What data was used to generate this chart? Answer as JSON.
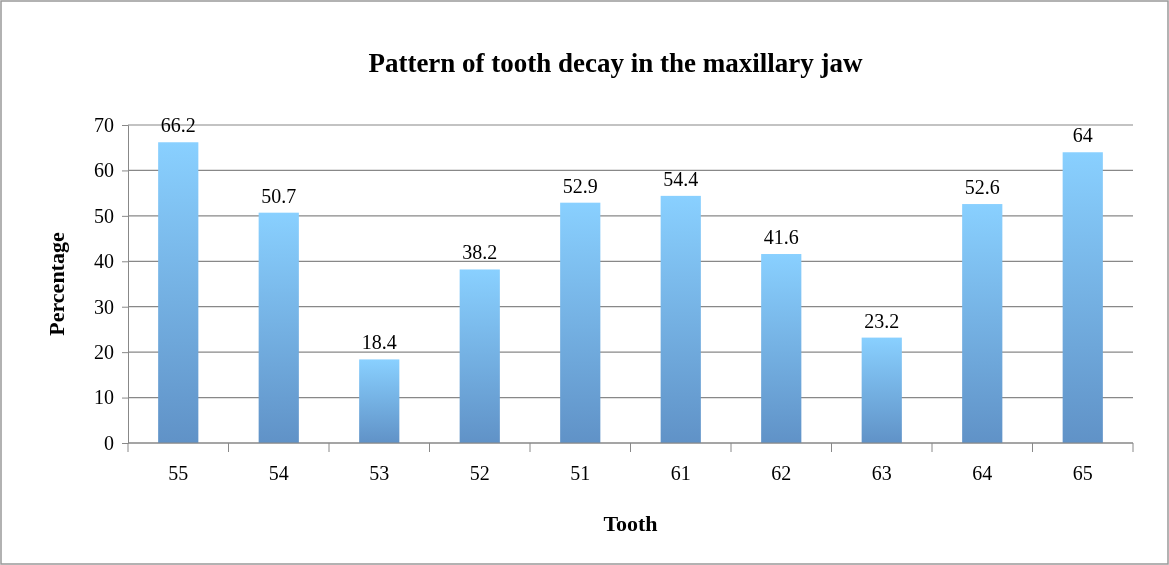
{
  "chart_data": {
    "type": "bar",
    "title": "Pattern of tooth decay in the maxillary jaw",
    "xlabel": "Tooth",
    "ylabel": "Percentage",
    "categories": [
      "55",
      "54",
      "53",
      "52",
      "51",
      "61",
      "62",
      "63",
      "64",
      "65"
    ],
    "values": [
      66.2,
      50.7,
      18.4,
      38.2,
      52.9,
      54.4,
      41.6,
      23.2,
      52.6,
      64
    ],
    "color": "#6fa8e6",
    "ylim": [
      0,
      70
    ],
    "yticks": [
      0,
      10,
      20,
      30,
      40,
      50,
      60,
      70
    ],
    "grid": "y",
    "data_labels": true
  }
}
